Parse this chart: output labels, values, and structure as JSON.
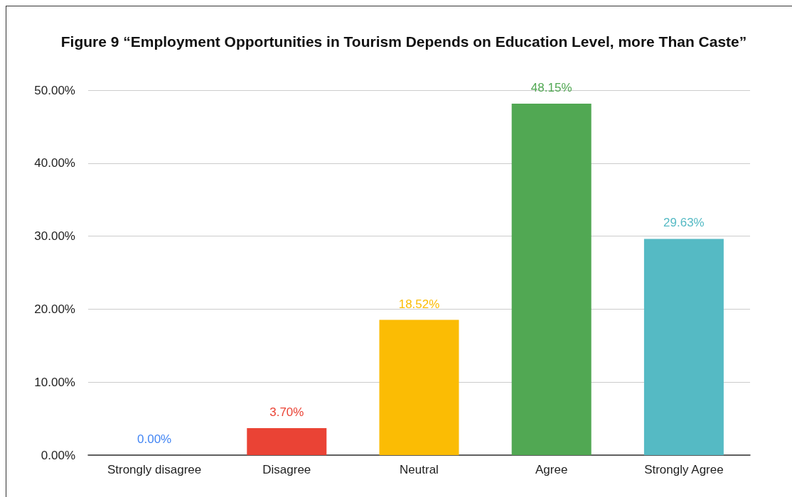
{
  "chart_data": {
    "type": "bar",
    "title": "Figure 9 “Employment Opportunities in Tourism Depends on Education Level, more Than Caste”",
    "categories": [
      "Strongly disagree",
      "Disagree",
      "Neutral",
      "Agree",
      "Strongly Agree"
    ],
    "values": [
      0,
      3.7,
      18.52,
      48.15,
      29.63
    ],
    "colors": [
      "#4285f4",
      "#ea4335",
      "#fbbc04",
      "#51a853",
      "#55bac4"
    ],
    "value_labels": [
      "0.00%",
      "3.70%",
      "18.52%",
      "48.15%",
      "29.63%"
    ],
    "ylim": [
      0,
      50
    ],
    "yticks": [
      {
        "value": 0,
        "label": "0.00%"
      },
      {
        "value": 10,
        "label": "10.00%"
      },
      {
        "value": 20,
        "label": "20.00%"
      },
      {
        "value": 30,
        "label": "30.00%"
      },
      {
        "value": 40,
        "label": "40.00%"
      },
      {
        "value": 50,
        "label": "50.00%"
      }
    ],
    "grid": true
  }
}
